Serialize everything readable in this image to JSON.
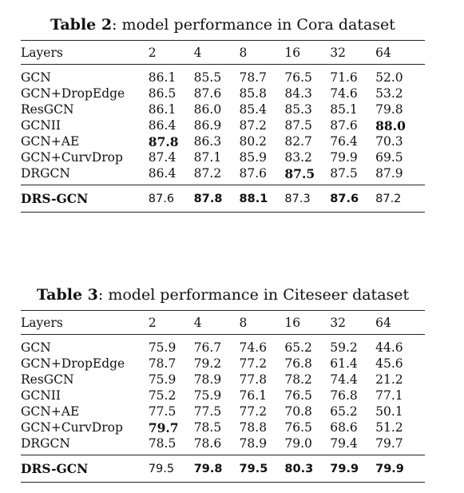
{
  "table2": {
    "caption_label": "Table 2",
    "caption_text": ": model performance in Cora dataset",
    "headers": [
      "Layers",
      "2",
      "4",
      "8",
      "16",
      "32",
      "64"
    ],
    "rows": [
      {
        "model": "GCN",
        "values": [
          "86.1",
          "85.5",
          "78.7",
          "76.5",
          "71.6",
          "52.0"
        ]
      },
      {
        "model": "GCN+DropEdge",
        "values": [
          "86.5",
          "87.6",
          "85.8",
          "84.3",
          "74.6",
          "53.2"
        ]
      },
      {
        "model": "ResGCN",
        "values": [
          "86.1",
          "86.0",
          "85.4",
          "85.3",
          "85.1",
          "79.8"
        ]
      },
      {
        "model": "GCNII",
        "values": [
          "86.4",
          "86.9",
          "87.2",
          "87.5",
          "87.6",
          "88.0"
        ]
      },
      {
        "model": "GCN+AE",
        "values": [
          "87.8",
          "86.3",
          "80.2",
          "82.7",
          "76.4",
          "70.3"
        ]
      },
      {
        "model": "GCN+CurvDrop",
        "values": [
          "87.4",
          "87.1",
          "85.9",
          "83.2",
          "79.9",
          "69.5"
        ]
      },
      {
        "model": "DRGCN",
        "values": [
          "86.4",
          "87.2",
          "87.6",
          "87.5",
          "87.5",
          "87.9"
        ]
      }
    ],
    "ours": {
      "model": "DRS-GCN",
      "values": [
        "87.6",
        "87.8",
        "88.1",
        "87.3",
        "87.6",
        "87.2"
      ]
    }
  },
  "table3": {
    "caption_label": "Table 3",
    "caption_text": ": model performance in Citeseer dataset",
    "headers": [
      "Layers",
      "2",
      "4",
      "8",
      "16",
      "32",
      "64"
    ],
    "rows": [
      {
        "model": "GCN",
        "values": [
          "75.9",
          "76.7",
          "74.6",
          "65.2",
          "59.2",
          "44.6"
        ]
      },
      {
        "model": "GCN+DropEdge",
        "values": [
          "78.7",
          "79.2",
          "77.2",
          "76.8",
          "61.4",
          "45.6"
        ]
      },
      {
        "model": "ResGCN",
        "values": [
          "75.9",
          "78.9",
          "77.8",
          "78.2",
          "74.4",
          "21.2"
        ]
      },
      {
        "model": "GCNII",
        "values": [
          "75.2",
          "75.9",
          "76.1",
          "76.5",
          "76.8",
          "77.1"
        ]
      },
      {
        "model": "GCN+AE",
        "values": [
          "77.5",
          "77.5",
          "77.2",
          "70.8",
          "65.2",
          "50.1"
        ]
      },
      {
        "model": "GCN+CurvDrop",
        "values": [
          "79.7",
          "78.5",
          "78.8",
          "76.5",
          "68.6",
          "51.2"
        ]
      },
      {
        "model": "DRGCN",
        "values": [
          "78.5",
          "78.6",
          "78.9",
          "79.0",
          "79.4",
          "79.7"
        ]
      }
    ],
    "ours": {
      "model": "DRS-GCN",
      "values": [
        "79.5",
        "79.8",
        "79.5",
        "80.3",
        "79.9",
        "79.9"
      ]
    }
  }
}
